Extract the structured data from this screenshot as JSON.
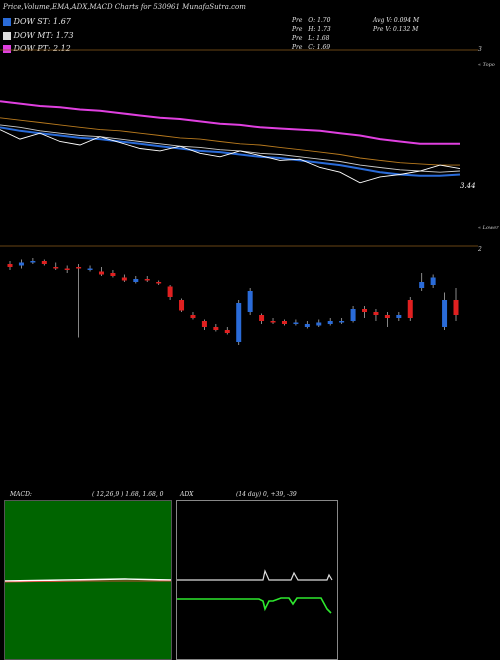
{
  "header": {
    "title": "Price,Volume,EMA,ADX,MACD Charts for 530961 MunafaSutra.com",
    "dow": [
      {
        "label": "DOW ST: 1.67",
        "color": "#2a6bd8"
      },
      {
        "label": "DOW MT: 1.73",
        "color": "#dddddd"
      },
      {
        "label": "DOW PT: 2.12",
        "color": "#e040e0"
      }
    ],
    "prev": [
      {
        "label": "Pre",
        "key": "O:",
        "value": "1.70"
      },
      {
        "label": "Pre",
        "key": "H:",
        "value": "1.73"
      },
      {
        "label": "Pre",
        "key": "L:",
        "value": "1.68"
      },
      {
        "label": "Pre",
        "key": "C:",
        "value": "1.69"
      }
    ],
    "avg_volume": "Avg V: 0.094  M",
    "prev_volume": "Pre  V: 0.132  M"
  },
  "price_panel": {
    "right_top_label": "3",
    "topo_label": "« Topo",
    "last_price_label": "3.44",
    "lower_label": "« Lower",
    "candle_top_label": "2"
  },
  "chart_data": [
    {
      "type": "line",
      "panel": "price-ema",
      "ylim": [
        2.6,
        3.7
      ],
      "series": [
        {
          "color": "#e040e0",
          "values": [
            3.52,
            3.5,
            3.48,
            3.47,
            3.45,
            3.44,
            3.42,
            3.4,
            3.38,
            3.37,
            3.35,
            3.33,
            3.32,
            3.3,
            3.29,
            3.28,
            3.27,
            3.25,
            3.23,
            3.2,
            3.18,
            3.16,
            3.16,
            3.16
          ]
        },
        {
          "color": "#2a6bd8",
          "values": [
            3.3,
            3.27,
            3.25,
            3.23,
            3.21,
            3.2,
            3.18,
            3.16,
            3.14,
            3.12,
            3.1,
            3.09,
            3.07,
            3.05,
            3.04,
            3.02,
            3.0,
            2.98,
            2.95,
            2.92,
            2.9,
            2.89,
            2.89,
            2.9
          ]
        },
        {
          "color": "#cccccc",
          "values": [
            3.32,
            3.3,
            3.27,
            3.25,
            3.23,
            3.22,
            3.2,
            3.18,
            3.16,
            3.14,
            3.13,
            3.11,
            3.1,
            3.08,
            3.07,
            3.05,
            3.03,
            3.01,
            2.98,
            2.96,
            2.94,
            2.93,
            2.92,
            2.93
          ]
        },
        {
          "color": "#b87a1e",
          "values": [
            3.38,
            3.36,
            3.34,
            3.32,
            3.3,
            3.28,
            3.27,
            3.25,
            3.23,
            3.21,
            3.2,
            3.18,
            3.16,
            3.15,
            3.13,
            3.11,
            3.09,
            3.07,
            3.04,
            3.02,
            3.0,
            2.99,
            2.98,
            2.98
          ]
        },
        {
          "color": "#ffffff",
          "values": [
            3.28,
            3.2,
            3.25,
            3.18,
            3.15,
            3.22,
            3.17,
            3.12,
            3.1,
            3.14,
            3.08,
            3.05,
            3.1,
            3.06,
            3.02,
            3.03,
            2.96,
            2.92,
            2.83,
            2.88,
            2.9,
            2.93,
            2.98,
            2.95
          ]
        }
      ]
    },
    {
      "type": "bar",
      "panel": "candles",
      "ylim": [
        1.4,
        2.1
      ],
      "candles": [
        [
          2.04,
          2.02,
          2.06,
          2.0
        ],
        [
          2.03,
          2.05,
          2.07,
          2.01
        ],
        [
          2.05,
          2.06,
          2.08,
          2.04
        ],
        [
          2.06,
          2.04,
          2.07,
          2.03
        ],
        [
          2.02,
          2.01,
          2.05,
          2.0
        ],
        [
          2.01,
          2.0,
          2.03,
          1.98
        ],
        [
          2.02,
          2.01,
          2.04,
          1.55
        ],
        [
          2.0,
          2.01,
          2.03,
          1.99
        ],
        [
          1.99,
          1.97,
          2.02,
          1.96
        ],
        [
          1.98,
          1.96,
          2.0,
          1.95
        ],
        [
          1.95,
          1.93,
          1.97,
          1.92
        ],
        [
          1.92,
          1.94,
          1.96,
          1.91
        ],
        [
          1.94,
          1.93,
          1.96,
          1.92
        ],
        [
          1.92,
          1.91,
          1.93,
          1.9
        ],
        [
          1.89,
          1.82,
          1.9,
          1.8
        ],
        [
          1.8,
          1.73,
          1.81,
          1.72
        ],
        [
          1.7,
          1.68,
          1.72,
          1.67
        ],
        [
          1.66,
          1.62,
          1.67,
          1.6
        ],
        [
          1.62,
          1.6,
          1.64,
          1.59
        ],
        [
          1.6,
          1.58,
          1.62,
          1.57
        ],
        [
          1.52,
          1.78,
          1.8,
          1.5
        ],
        [
          1.72,
          1.86,
          1.88,
          1.7
        ],
        [
          1.7,
          1.66,
          1.71,
          1.64
        ],
        [
          1.66,
          1.65,
          1.68,
          1.64
        ],
        [
          1.66,
          1.64,
          1.67,
          1.63
        ],
        [
          1.64,
          1.65,
          1.67,
          1.63
        ],
        [
          1.62,
          1.64,
          1.66,
          1.61
        ],
        [
          1.63,
          1.65,
          1.67,
          1.62
        ],
        [
          1.64,
          1.66,
          1.68,
          1.63
        ],
        [
          1.65,
          1.66,
          1.68,
          1.64
        ],
        [
          1.66,
          1.74,
          1.76,
          1.65
        ],
        [
          1.74,
          1.72,
          1.76,
          1.68
        ],
        [
          1.72,
          1.7,
          1.74,
          1.66
        ],
        [
          1.7,
          1.68,
          1.72,
          1.62
        ],
        [
          1.68,
          1.7,
          1.72,
          1.66
        ],
        [
          1.8,
          1.68,
          1.82,
          1.66
        ],
        [
          1.88,
          1.92,
          1.98,
          1.86
        ],
        [
          1.9,
          1.95,
          1.97,
          1.88
        ],
        [
          1.62,
          1.8,
          1.85,
          1.6
        ],
        [
          1.8,
          1.7,
          1.88,
          1.66
        ]
      ]
    }
  ],
  "macd_panel": {
    "label": "MACD:",
    "params": "( 12,26,9 ) 1.68,  1.68,  0"
  },
  "adx_panel": {
    "label": "ADX",
    "params": "(14  day) 0,  +39,  -39"
  }
}
